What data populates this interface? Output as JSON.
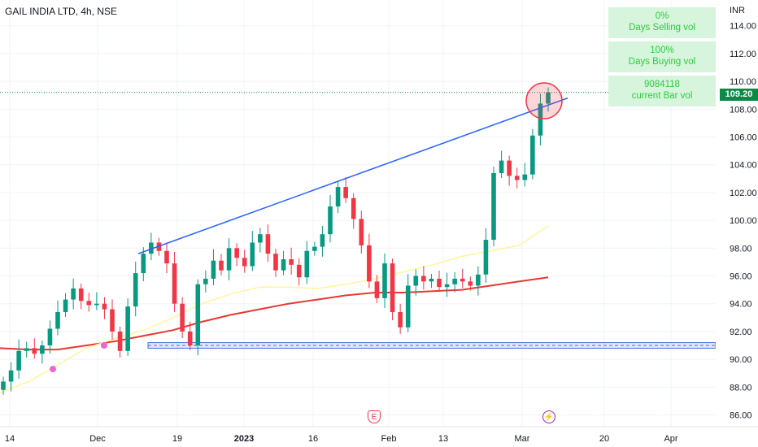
{
  "header": {
    "title": "GAIL INDIA LTD, 4h, NSE"
  },
  "info_boxes": [
    {
      "value": "0%",
      "label": "Days Selling vol"
    },
    {
      "value": "100%",
      "label": "Days Buying vol"
    },
    {
      "value": "9084118",
      "label": "current Bar vol"
    }
  ],
  "price_axis": {
    "currency": "INR",
    "current_price_label": "109.20"
  },
  "events": [
    {
      "label": "E"
    },
    {
      "label": "⚡"
    }
  ],
  "colors": {
    "up": "#089981",
    "down": "#f23645",
    "ema_fast": "#fff59d",
    "ema_slow": "#e53935",
    "trendline": "#2962ff",
    "support": "#3f6fd8"
  },
  "chart_data": {
    "type": "candlestick",
    "title": "GAIL INDIA LTD, 4h, NSE",
    "y_unit": "INR",
    "ylim": [
      85.5,
      115.3
    ],
    "y_ticks": [
      86,
      88,
      90,
      92,
      94,
      96,
      98,
      100,
      102,
      104,
      106,
      108,
      110,
      112,
      114
    ],
    "x_ticks": [
      "14",
      "Dec",
      "19",
      "2023",
      "16",
      "Feb",
      "13",
      "Mar",
      "20",
      "Apr"
    ],
    "last_price": 109.2,
    "close_series": [
      88.4,
      89.2,
      90.6,
      90.8,
      90.4,
      91.0,
      92.2,
      93.4,
      94.3,
      95.1,
      94.2,
      93.9,
      94.0,
      93.6,
      92.0,
      90.6,
      93.8,
      96.2,
      97.6,
      98.4,
      97.8,
      96.9,
      94.0,
      92.0,
      91.0,
      95.4,
      95.8,
      97.1,
      96.4,
      98.0,
      97.3,
      96.7,
      98.4,
      99.0,
      97.6,
      96.4,
      97.2,
      96.8,
      95.9,
      97.8,
      98.1,
      99.0,
      101.0,
      102.4,
      101.6,
      100.1,
      98.2,
      95.6,
      94.4,
      96.9,
      93.4,
      92.3,
      95.3,
      96.0,
      95.6,
      95.8,
      95.2,
      95.4,
      95.8,
      95.6,
      95.3,
      96.1,
      98.6,
      103.4,
      104.3,
      103.2,
      102.9,
      103.3,
      106.1,
      108.4,
      109.2
    ],
    "ema_fast_approx": [
      87.6,
      88.4,
      89.6,
      90.8,
      91.5,
      92.1,
      93.0,
      94.0,
      94.7,
      95.2,
      95.2,
      95.1,
      95.4,
      95.8,
      96.3,
      96.8,
      97.4,
      97.8,
      98.2,
      99.6
    ],
    "ema_slow_approx": [
      90.8,
      90.7,
      90.7,
      91.0,
      91.3,
      91.7,
      92.1,
      92.7,
      93.2,
      93.6,
      94.0,
      94.3,
      94.6,
      94.8,
      94.8,
      94.9,
      95.0,
      95.3,
      95.6,
      95.9
    ],
    "trendline": {
      "from": [
        "late Nov",
        97.6
      ],
      "to": [
        "early Mar",
        108.8
      ]
    },
    "support_zone": [
      90.8,
      91.2
    ]
  }
}
